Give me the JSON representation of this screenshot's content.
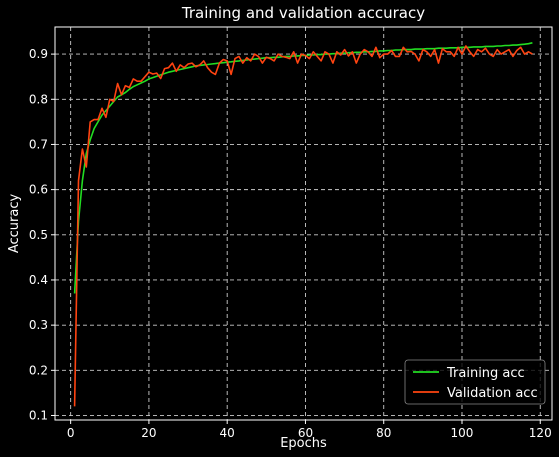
{
  "chart_data": {
    "type": "line",
    "title": "Training and validation accuracy",
    "xlabel": "Epochs",
    "ylabel": "Accuracy",
    "xlim": [
      -4,
      123
    ],
    "ylim": [
      0.09,
      0.96
    ],
    "xticks": [
      0,
      20,
      40,
      60,
      80,
      100,
      120
    ],
    "yticks": [
      0.1,
      0.2,
      0.3,
      0.4,
      0.5,
      0.6,
      0.7,
      0.8,
      0.9
    ],
    "grid": true,
    "legend_position": "lower-right",
    "series": [
      {
        "name": "Training acc",
        "color": "#22dd22",
        "x": [
          1,
          2,
          3,
          4,
          5,
          6,
          7,
          8,
          9,
          10,
          11,
          12,
          13,
          14,
          15,
          16,
          17,
          18,
          19,
          20,
          21,
          22,
          23,
          24,
          25,
          26,
          27,
          28,
          29,
          30,
          31,
          32,
          33,
          34,
          35,
          36,
          37,
          38,
          39,
          40,
          41,
          42,
          43,
          44,
          45,
          46,
          47,
          48,
          49,
          50,
          51,
          52,
          53,
          54,
          55,
          56,
          57,
          58,
          59,
          60,
          61,
          62,
          63,
          64,
          65,
          66,
          67,
          68,
          69,
          70,
          71,
          72,
          73,
          74,
          75,
          76,
          77,
          78,
          79,
          80,
          81,
          82,
          83,
          84,
          85,
          86,
          87,
          88,
          89,
          90,
          91,
          92,
          93,
          94,
          95,
          96,
          97,
          98,
          99,
          100,
          101,
          102,
          103,
          104,
          105,
          106,
          107,
          108,
          109,
          110,
          111,
          112,
          113,
          114,
          115,
          116,
          117,
          118
        ],
        "values": [
          0.37,
          0.53,
          0.62,
          0.68,
          0.71,
          0.735,
          0.75,
          0.765,
          0.775,
          0.785,
          0.795,
          0.805,
          0.81,
          0.815,
          0.822,
          0.828,
          0.832,
          0.836,
          0.84,
          0.845,
          0.848,
          0.851,
          0.854,
          0.857,
          0.86,
          0.862,
          0.864,
          0.866,
          0.868,
          0.87,
          0.872,
          0.874,
          0.875,
          0.876,
          0.877,
          0.878,
          0.879,
          0.88,
          0.881,
          0.882,
          0.883,
          0.884,
          0.885,
          0.886,
          0.887,
          0.888,
          0.889,
          0.89,
          0.891,
          0.892,
          0.892,
          0.893,
          0.893,
          0.894,
          0.895,
          0.895,
          0.896,
          0.896,
          0.897,
          0.897,
          0.898,
          0.898,
          0.899,
          0.899,
          0.9,
          0.9,
          0.901,
          0.901,
          0.902,
          0.902,
          0.903,
          0.903,
          0.904,
          0.904,
          0.905,
          0.905,
          0.906,
          0.906,
          0.907,
          0.907,
          0.908,
          0.908,
          0.909,
          0.909,
          0.91,
          0.91,
          0.91,
          0.911,
          0.911,
          0.911,
          0.912,
          0.912,
          0.912,
          0.913,
          0.913,
          0.913,
          0.914,
          0.914,
          0.914,
          0.915,
          0.915,
          0.915,
          0.916,
          0.916,
          0.916,
          0.917,
          0.917,
          0.917,
          0.918,
          0.918,
          0.919,
          0.919,
          0.92,
          0.92,
          0.921,
          0.922,
          0.923,
          0.925
        ]
      },
      {
        "name": "Validation acc",
        "color": "#ff4411",
        "x": [
          1,
          2,
          3,
          4,
          5,
          6,
          7,
          8,
          9,
          10,
          11,
          12,
          13,
          14,
          15,
          16,
          17,
          18,
          19,
          20,
          21,
          22,
          23,
          24,
          25,
          26,
          27,
          28,
          29,
          30,
          31,
          32,
          33,
          34,
          35,
          36,
          37,
          38,
          39,
          40,
          41,
          42,
          43,
          44,
          45,
          46,
          47,
          48,
          49,
          50,
          51,
          52,
          53,
          54,
          55,
          56,
          57,
          58,
          59,
          60,
          61,
          62,
          63,
          64,
          65,
          66,
          67,
          68,
          69,
          70,
          71,
          72,
          73,
          74,
          75,
          76,
          77,
          78,
          79,
          80,
          81,
          82,
          83,
          84,
          85,
          86,
          87,
          88,
          89,
          90,
          91,
          92,
          93,
          94,
          95,
          96,
          97,
          98,
          99,
          100,
          101,
          102,
          103,
          104,
          105,
          106,
          107,
          108,
          109,
          110,
          111,
          112,
          113,
          114,
          115,
          116,
          117,
          118
        ],
        "values": [
          0.12,
          0.62,
          0.69,
          0.65,
          0.75,
          0.755,
          0.755,
          0.78,
          0.76,
          0.8,
          0.795,
          0.835,
          0.81,
          0.83,
          0.826,
          0.845,
          0.84,
          0.84,
          0.85,
          0.86,
          0.856,
          0.858,
          0.846,
          0.868,
          0.87,
          0.88,
          0.862,
          0.876,
          0.87,
          0.878,
          0.88,
          0.872,
          0.876,
          0.885,
          0.87,
          0.86,
          0.855,
          0.88,
          0.888,
          0.885,
          0.855,
          0.89,
          0.895,
          0.88,
          0.892,
          0.885,
          0.9,
          0.895,
          0.88,
          0.893,
          0.89,
          0.885,
          0.9,
          0.895,
          0.893,
          0.89,
          0.905,
          0.88,
          0.9,
          0.897,
          0.89,
          0.905,
          0.895,
          0.885,
          0.905,
          0.9,
          0.88,
          0.905,
          0.898,
          0.91,
          0.896,
          0.905,
          0.88,
          0.9,
          0.91,
          0.905,
          0.895,
          0.915,
          0.892,
          0.9,
          0.9,
          0.908,
          0.895,
          0.895,
          0.915,
          0.905,
          0.906,
          0.9,
          0.885,
          0.91,
          0.905,
          0.895,
          0.91,
          0.88,
          0.912,
          0.905,
          0.905,
          0.895,
          0.915,
          0.9,
          0.918,
          0.905,
          0.895,
          0.91,
          0.905,
          0.913,
          0.9,
          0.895,
          0.91,
          0.9,
          0.905,
          0.91,
          0.895,
          0.908,
          0.915,
          0.9,
          0.905,
          0.9
        ]
      }
    ]
  }
}
